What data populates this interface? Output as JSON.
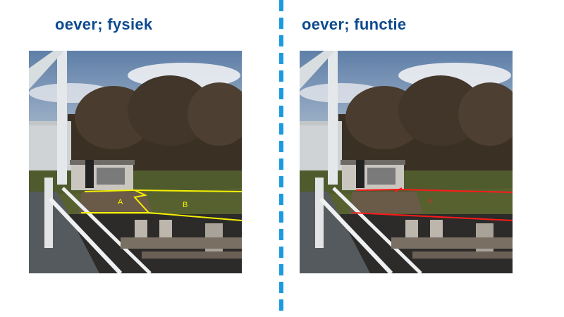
{
  "slide": {
    "left_title": "oever; fysiek",
    "right_title": "oever; functie"
  },
  "left_photo": {
    "labels": {
      "a": "A",
      "b": "B"
    },
    "overlay_color": "#f5f000"
  },
  "right_photo": {
    "labels": {
      "a": "A"
    },
    "overlay_color": "#ff1a1a"
  },
  "colors": {
    "title": "#0d4a8f",
    "divider": "#1a9be0"
  }
}
